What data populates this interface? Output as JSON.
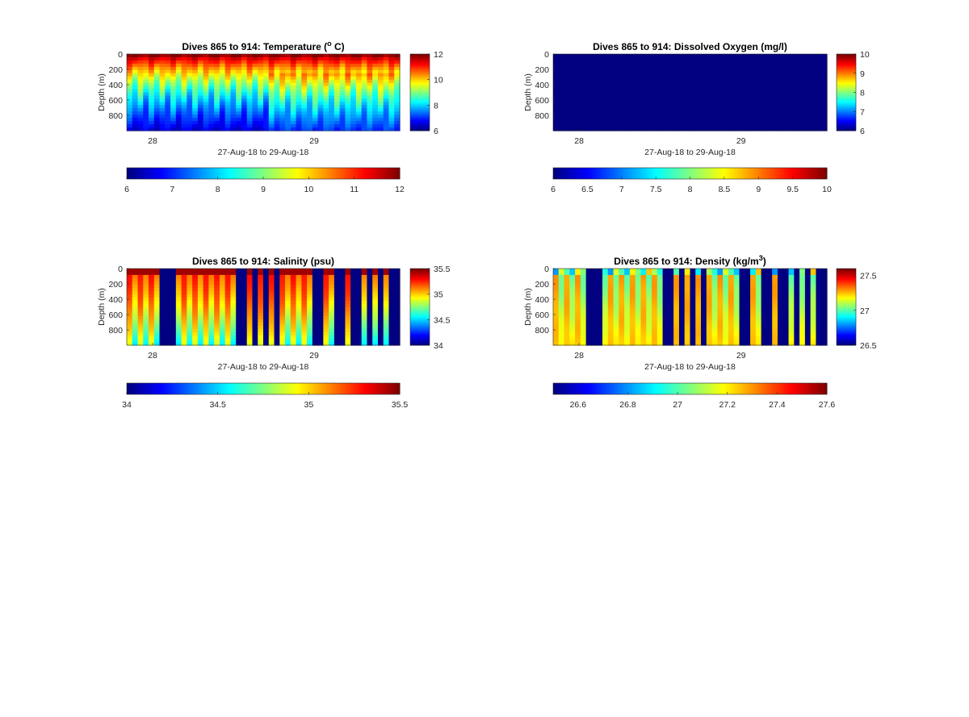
{
  "chart_data": [
    {
      "type": "heatmap",
      "title": "Dives 865 to 914: Temperature (",
      "title_sup": "o",
      "title_suffix": " C)",
      "variable": "temperature",
      "xlabel": "27-Aug-18 to 29-Aug-18",
      "ylabel": "Depth (m)",
      "x_ticks": [
        {
          "label": "28",
          "value": 28.0
        },
        {
          "label": "29",
          "value": 29.0
        }
      ],
      "xlim": [
        27.84,
        29.53
      ],
      "y_ticks": [
        "0",
        "200",
        "400",
        "600",
        "800"
      ],
      "ylim": [
        0,
        1000
      ],
      "y_reversed": true,
      "clim": [
        6,
        12
      ],
      "colormap": "jet",
      "side_colorbar_ticks": [
        "6",
        "8",
        "10",
        "12"
      ],
      "bottom_colorbar_ticks": [
        "6",
        "7",
        "8",
        "9",
        "10",
        "11",
        "12"
      ],
      "dives": 50,
      "profile": {
        "surface_value": 11.9,
        "bottom_value": 6.6
      }
    },
    {
      "type": "heatmap",
      "title": "Dives 865 to 914: Dissolved Oxygen (mg/l)",
      "variable": "dissolved_oxygen",
      "xlabel": "27-Aug-18 to 29-Aug-18",
      "ylabel": "Depth (m)",
      "x_ticks": [
        {
          "label": "28",
          "value": 28.0
        },
        {
          "label": "29",
          "value": 29.0
        }
      ],
      "xlim": [
        27.84,
        29.53
      ],
      "y_ticks": [
        "0",
        "200",
        "400",
        "600",
        "800"
      ],
      "ylim": [
        0,
        1000
      ],
      "y_reversed": true,
      "clim": [
        6,
        10
      ],
      "colormap": "jet",
      "side_colorbar_ticks": [
        "6",
        "7",
        "8",
        "9",
        "10"
      ],
      "bottom_colorbar_ticks": [
        "6",
        "6.5",
        "7",
        "7.5",
        "8",
        "8.5",
        "9",
        "9.5",
        "10"
      ],
      "dives": 50,
      "uniform_value": 6.0
    },
    {
      "type": "heatmap",
      "title": "Dives 865 to 914: Salinity (psu)",
      "variable": "salinity",
      "xlabel": "27-Aug-18 to 29-Aug-18",
      "ylabel": "Depth (m)",
      "x_ticks": [
        {
          "label": "28",
          "value": 28.0
        },
        {
          "label": "29",
          "value": 29.0
        }
      ],
      "xlim": [
        27.84,
        29.53
      ],
      "y_ticks": [
        "0",
        "200",
        "400",
        "600",
        "800"
      ],
      "ylim": [
        0,
        1000
      ],
      "y_reversed": true,
      "clim": [
        34,
        35.5
      ],
      "colormap": "jet",
      "side_colorbar_ticks": [
        "34",
        "34.5",
        "35",
        "35.5"
      ],
      "bottom_colorbar_ticks": [
        "34",
        "34.5",
        "35",
        "35.5"
      ],
      "dives": 50,
      "empty_dives": [
        6,
        7,
        8,
        20,
        21,
        23,
        25,
        27,
        34,
        35,
        38,
        39,
        41,
        42,
        44,
        46,
        48,
        49
      ],
      "profile": {
        "surface_value": 35.45,
        "mid_value": 35.3,
        "bottom_value": 34.9
      }
    },
    {
      "type": "heatmap",
      "title": "Dives 865 to 914: Density (kg/m",
      "title_sup": "3",
      "title_suffix": ")",
      "variable": "density",
      "xlabel": "27-Aug-18 to 29-Aug-18",
      "ylabel": "Depth (m)",
      "x_ticks": [
        {
          "label": "28",
          "value": 28.0
        },
        {
          "label": "29",
          "value": 29.0
        }
      ],
      "xlim": [
        27.84,
        29.53
      ],
      "y_ticks": [
        "0",
        "200",
        "400",
        "600",
        "800"
      ],
      "ylim": [
        0,
        1000
      ],
      "y_reversed": true,
      "clim": [
        26.5,
        27.6
      ],
      "colormap": "jet",
      "side_colorbar_ticks": [
        "26.5",
        "27",
        "27.5"
      ],
      "side_colorbar_tick_values": [
        26.5,
        27.0,
        27.5
      ],
      "bottom_colorbar_ticks": [
        "26.6",
        "26.8",
        "27",
        "27.2",
        "27.4",
        "27.6"
      ],
      "bottom_colorbar_tick_values": [
        26.6,
        26.8,
        27.0,
        27.2,
        27.4,
        27.6
      ],
      "dives": 50,
      "empty_dives": [
        6,
        7,
        8,
        20,
        21,
        23,
        25,
        27,
        34,
        35,
        38,
        39,
        41,
        42,
        44,
        46,
        48,
        49
      ],
      "profile": {
        "surface_value": 27.0,
        "mid_value": 27.3,
        "bottom_value": 27.25
      }
    }
  ]
}
